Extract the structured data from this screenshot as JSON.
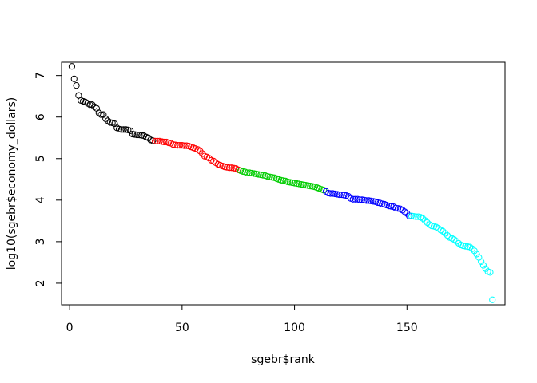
{
  "chart_data": {
    "type": "scatter",
    "xlabel": "sgebr$rank",
    "ylabel": "log10(sgebr$economy_dollars)",
    "xlim": [
      -3.6,
      193.6
    ],
    "ylim": [
      1.48,
      7.32
    ],
    "xticks": [
      0,
      50,
      100,
      150
    ],
    "yticks": [
      2,
      3,
      4,
      5,
      6,
      7
    ],
    "grid": false,
    "legend": "none",
    "marker": "open-circle",
    "series": [
      {
        "color": "#000000",
        "x_start": 1,
        "y": [
          7.22,
          6.92,
          6.76,
          6.52,
          6.4,
          6.38,
          6.36,
          6.33,
          6.3,
          6.3,
          6.25,
          6.21,
          6.1,
          6.06,
          6.06,
          5.96,
          5.91,
          5.87,
          5.86,
          5.84,
          5.74,
          5.71,
          5.7,
          5.7,
          5.7,
          5.69,
          5.67,
          5.59,
          5.58,
          5.57,
          5.57,
          5.56,
          5.55,
          5.52,
          5.5,
          5.45,
          5.43
        ]
      },
      {
        "color": "#ff0000",
        "x_start": 38,
        "y": [
          5.42,
          5.42,
          5.42,
          5.41,
          5.4,
          5.4,
          5.38,
          5.37,
          5.34,
          5.33,
          5.32,
          5.32,
          5.32,
          5.31,
          5.31,
          5.3,
          5.28,
          5.26,
          5.24,
          5.22,
          5.18,
          5.12,
          5.06,
          5.04,
          5.01,
          4.96,
          4.94,
          4.9,
          4.86,
          4.84,
          4.82,
          4.8,
          4.79,
          4.78,
          4.78,
          4.77,
          4.76,
          4.73
        ]
      },
      {
        "color": "#00cd00",
        "x_start": 76,
        "y": [
          4.71,
          4.69,
          4.68,
          4.66,
          4.66,
          4.65,
          4.64,
          4.63,
          4.62,
          4.61,
          4.6,
          4.59,
          4.57,
          4.56,
          4.55,
          4.54,
          4.52,
          4.5,
          4.48,
          4.47,
          4.46,
          4.44,
          4.43,
          4.42,
          4.41,
          4.4,
          4.39,
          4.38,
          4.37,
          4.36,
          4.35,
          4.34,
          4.33,
          4.32,
          4.3,
          4.28,
          4.26,
          4.24
        ]
      },
      {
        "color": "#0000ff",
        "x_start": 114,
        "y": [
          4.21,
          4.17,
          4.16,
          4.16,
          4.15,
          4.14,
          4.13,
          4.13,
          4.12,
          4.11,
          4.09,
          4.04,
          4.02,
          4.02,
          4.02,
          4.01,
          4.01,
          4.0,
          3.99,
          3.99,
          3.98,
          3.97,
          3.96,
          3.94,
          3.93,
          3.91,
          3.9,
          3.88,
          3.86,
          3.85,
          3.84,
          3.81,
          3.8,
          3.79,
          3.76,
          3.72,
          3.68,
          3.62
        ]
      },
      {
        "color": "#00ffff",
        "x_start": 152,
        "y": [
          3.62,
          3.61,
          3.6,
          3.6,
          3.59,
          3.56,
          3.51,
          3.46,
          3.41,
          3.38,
          3.37,
          3.35,
          3.32,
          3.28,
          3.25,
          3.2,
          3.15,
          3.1,
          3.08,
          3.05,
          3.01,
          2.96,
          2.92,
          2.9,
          2.89,
          2.88,
          2.87,
          2.83,
          2.78,
          2.7,
          2.62,
          2.52,
          2.43,
          2.35,
          2.28,
          2.26,
          1.6
        ]
      }
    ]
  }
}
